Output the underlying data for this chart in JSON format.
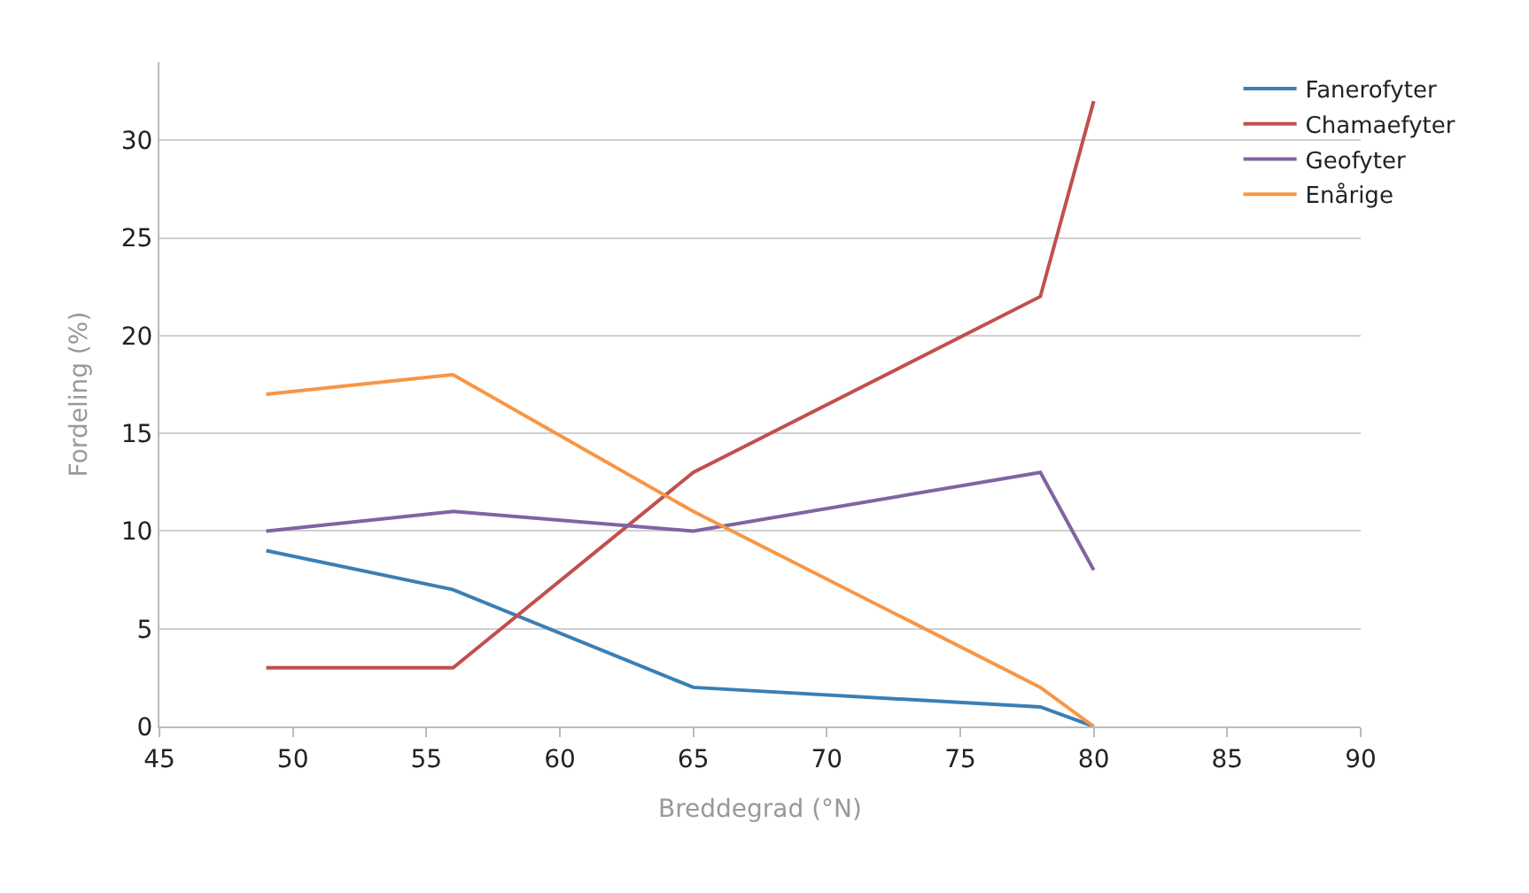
{
  "chart_data": {
    "type": "line",
    "xlabel": "Breddegrad (°N)",
    "ylabel": "Fordeling (%)",
    "x": [
      49,
      56,
      65,
      78,
      80
    ],
    "series": [
      {
        "name": "Fanerofyter",
        "color": "#3a7fb5",
        "values": [
          9,
          7,
          2,
          1,
          0
        ]
      },
      {
        "name": "Chamaefyter",
        "color": "#c0504d",
        "values": [
          3,
          3,
          13,
          22,
          32
        ]
      },
      {
        "name": "Geofyter",
        "color": "#8064a2",
        "values": [
          10,
          11,
          10,
          13,
          8
        ]
      },
      {
        "name": "Enårige",
        "color": "#f79646",
        "values": [
          17,
          18,
          11,
          2,
          0
        ]
      }
    ],
    "xlim": [
      45,
      90
    ],
    "xticks": [
      45,
      50,
      55,
      60,
      65,
      70,
      75,
      80,
      85,
      90
    ],
    "ylim": [
      0,
      34
    ],
    "yticks": [
      0,
      5,
      10,
      15,
      20,
      25,
      30
    ],
    "grid": "y",
    "legend": "top right",
    "marker": "none",
    "line_style": "solid"
  }
}
